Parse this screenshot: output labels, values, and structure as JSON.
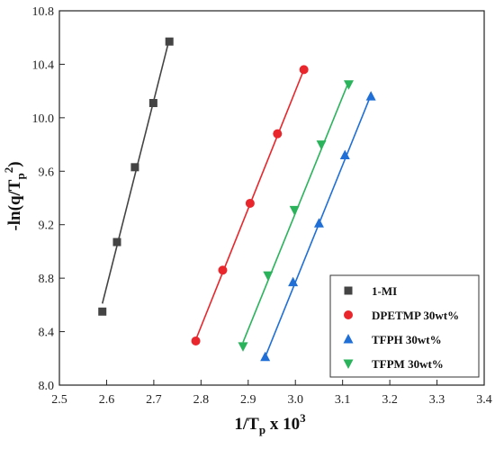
{
  "chart_data": {
    "type": "scatter",
    "xlabel": {
      "main": "1/T",
      "sub": "p",
      "mid": " x 10",
      "sup": "3"
    },
    "ylabel": {
      "pre": "-ln(q/T",
      "sub": "p",
      "sup": "2",
      "post": ")"
    },
    "xlim": [
      2.5,
      3.4
    ],
    "ylim": [
      8.0,
      10.8
    ],
    "xticks": [
      "2.5",
      "2.6",
      "2.7",
      "2.8",
      "2.9",
      "3.0",
      "3.1",
      "3.2",
      "3.3",
      "3.4"
    ],
    "yticks": [
      "8.0",
      "8.4",
      "8.8",
      "9.2",
      "9.6",
      "10.0",
      "10.4",
      "10.8"
    ],
    "grid": false,
    "legend_position": "bottom-right",
    "series": [
      {
        "name": "1-MI",
        "marker": "square",
        "color": "#444444",
        "line_color": "#444444",
        "points": [
          [
            2.591,
            8.55
          ],
          [
            2.622,
            9.07
          ],
          [
            2.66,
            9.63
          ],
          [
            2.699,
            10.11
          ],
          [
            2.733,
            10.57
          ]
        ],
        "fit": [
          [
            2.591,
            8.61
          ],
          [
            2.733,
            10.59
          ]
        ]
      },
      {
        "name": "DPETMP 30wt%",
        "marker": "circle",
        "color": "#e8262c",
        "line_color": "#e8262c",
        "points": [
          [
            2.789,
            8.33
          ],
          [
            2.846,
            8.86
          ],
          [
            2.904,
            9.36
          ],
          [
            2.962,
            9.88
          ],
          [
            3.018,
            10.36
          ]
        ],
        "fit": [
          [
            2.789,
            8.34
          ],
          [
            3.018,
            10.36
          ]
        ]
      },
      {
        "name": "TFPH 30wt%",
        "marker": "triangle-up",
        "color": "#1f6fd6",
        "line_color": "#1f6fd6",
        "points": [
          [
            2.936,
            8.21
          ],
          [
            2.995,
            8.77
          ],
          [
            3.05,
            9.21
          ],
          [
            3.105,
            9.72
          ],
          [
            3.16,
            10.16
          ]
        ],
        "fit": [
          [
            2.936,
            8.21
          ],
          [
            3.16,
            10.17
          ]
        ]
      },
      {
        "name": "TFPM 30wt%",
        "marker": "triangle-down",
        "color": "#2bb35c",
        "line_color": "#2bb35c",
        "points": [
          [
            2.889,
            8.29
          ],
          [
            2.942,
            8.82
          ],
          [
            2.998,
            9.31
          ],
          [
            3.055,
            9.8
          ],
          [
            3.113,
            10.25
          ]
        ],
        "fit": [
          [
            2.889,
            8.32
          ],
          [
            3.113,
            10.27
          ]
        ]
      }
    ]
  }
}
